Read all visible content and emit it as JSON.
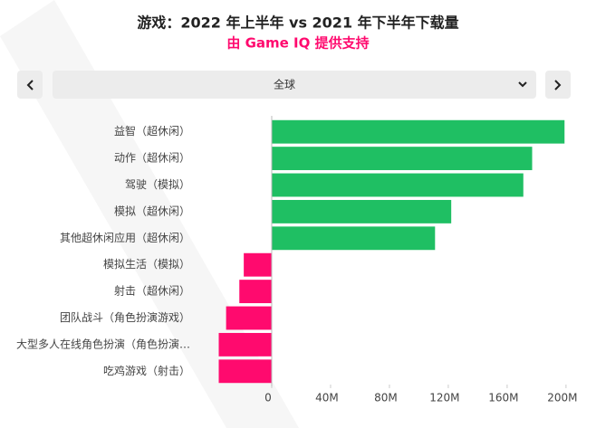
{
  "chart_data": {
    "type": "hbar",
    "title": "游戏：2022 年上半年 vs 2021 年下半年下载量",
    "subtitle": "由 Game IQ 提供支持",
    "categories": [
      "益智（超休闲）",
      "动作（超休闲）",
      "驾驶（模拟）",
      "模拟（超休闲）",
      "其他超休闲应用（超休闲）",
      "模拟生活（模拟）",
      "射击（超休闲）",
      "团队战斗（角色扮演游戏）",
      "大型多人在线角色扮演（角色扮演…",
      "吃鸡游戏（射击）"
    ],
    "values": [
      199,
      177,
      171,
      122,
      111,
      -19,
      -22,
      -31,
      -36,
      -36
    ],
    "color_positive": "#1fbf63",
    "color_negative": "#ff0a6e",
    "xlim": [
      -40,
      205
    ],
    "xticks": [
      0,
      {
        "value": 40,
        "label": "40M"
      },
      {
        "value": 80,
        "label": "80M"
      },
      {
        "value": 120,
        "label": "120M"
      },
      {
        "value": 160,
        "label": "160M"
      },
      {
        "value": 200,
        "label": "200M"
      }
    ]
  },
  "controls": {
    "region": "全球"
  }
}
